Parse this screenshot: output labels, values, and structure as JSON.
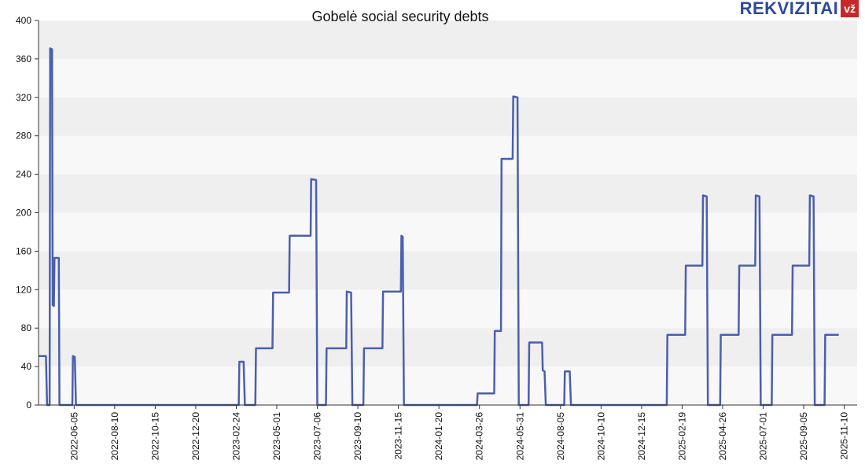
{
  "title": "Gobelė social security debts",
  "logo": {
    "text": "REKVIZITAI",
    "badge": "vž"
  },
  "colors": {
    "line": "#4a5fae",
    "band_dark": "#efefef",
    "band_light": "#f8f8f8",
    "axis": "#333333"
  },
  "chart_data": {
    "type": "line",
    "title": "Gobelė social security debts",
    "xlabel": "",
    "ylabel": "",
    "ylim": [
      0,
      400
    ],
    "y_ticks": [
      0,
      40,
      80,
      120,
      160,
      200,
      240,
      280,
      320,
      360,
      400
    ],
    "x_range": [
      "2022-04-08",
      "2025-12-01"
    ],
    "x_ticks": [
      "2022-06-05",
      "2022-08-10",
      "2022-10-15",
      "2022-12-20",
      "2023-02-24",
      "2023-05-01",
      "2023-07-06",
      "2023-09-10",
      "2023-11-15",
      "2024-01-20",
      "2024-03-26",
      "2024-05-31",
      "2024-08-05",
      "2024-10-10",
      "2024-12-15",
      "2025-02-19",
      "2025-04-26",
      "2025-07-01",
      "2025-09-05",
      "2025-11-10"
    ],
    "grid": "horizontal bands",
    "step": true,
    "series": [
      {
        "points": [
          [
            "2022-04-08",
            51
          ],
          [
            "2022-04-20",
            51
          ],
          [
            "2022-04-22",
            0
          ],
          [
            "2022-04-26",
            0
          ],
          [
            "2022-04-27",
            371
          ],
          [
            "2022-04-30",
            370
          ],
          [
            "2022-05-01",
            104
          ],
          [
            "2022-05-03",
            103
          ],
          [
            "2022-05-04",
            153
          ],
          [
            "2022-05-11",
            153
          ],
          [
            "2022-05-12",
            0
          ],
          [
            "2022-06-02",
            0
          ],
          [
            "2022-06-03",
            51
          ],
          [
            "2022-06-06",
            50
          ],
          [
            "2022-06-08",
            0
          ],
          [
            "2023-02-28",
            0
          ],
          [
            "2023-03-01",
            45
          ],
          [
            "2023-03-08",
            45
          ],
          [
            "2023-03-10",
            0
          ],
          [
            "2023-03-27",
            0
          ],
          [
            "2023-03-28",
            59
          ],
          [
            "2023-04-24",
            59
          ],
          [
            "2023-04-25",
            117
          ],
          [
            "2023-05-21",
            117
          ],
          [
            "2023-05-22",
            176
          ],
          [
            "2023-06-25",
            176
          ],
          [
            "2023-06-26",
            235
          ],
          [
            "2023-07-04",
            234
          ],
          [
            "2023-07-06",
            0
          ],
          [
            "2023-07-20",
            0
          ],
          [
            "2023-07-21",
            59
          ],
          [
            "2023-08-22",
            59
          ],
          [
            "2023-08-23",
            118
          ],
          [
            "2023-08-30",
            117
          ],
          [
            "2023-09-01",
            0
          ],
          [
            "2023-09-19",
            0
          ],
          [
            "2023-09-20",
            59
          ],
          [
            "2023-10-20",
            59
          ],
          [
            "2023-10-21",
            118
          ],
          [
            "2023-11-19",
            118
          ],
          [
            "2023-11-20",
            176
          ],
          [
            "2023-11-22",
            175
          ],
          [
            "2023-11-24",
            0
          ],
          [
            "2024-03-22",
            0
          ],
          [
            "2024-03-23",
            12
          ],
          [
            "2024-04-19",
            12
          ],
          [
            "2024-04-20",
            77
          ],
          [
            "2024-04-30",
            77
          ],
          [
            "2024-05-01",
            256
          ],
          [
            "2024-05-19",
            256
          ],
          [
            "2024-05-20",
            321
          ],
          [
            "2024-05-27",
            320
          ],
          [
            "2024-05-29",
            0
          ],
          [
            "2024-06-14",
            0
          ],
          [
            "2024-06-15",
            65
          ],
          [
            "2024-07-06",
            65
          ],
          [
            "2024-07-07",
            36
          ],
          [
            "2024-07-10",
            35
          ],
          [
            "2024-07-12",
            0
          ],
          [
            "2024-08-11",
            0
          ],
          [
            "2024-08-12",
            35
          ],
          [
            "2024-08-20",
            35
          ],
          [
            "2024-08-22",
            0
          ],
          [
            "2025-01-25",
            0
          ],
          [
            "2025-01-26",
            73
          ],
          [
            "2025-02-24",
            73
          ],
          [
            "2025-02-25",
            145
          ],
          [
            "2025-03-24",
            145
          ],
          [
            "2025-03-25",
            218
          ],
          [
            "2025-03-31",
            217
          ],
          [
            "2025-04-02",
            0
          ],
          [
            "2025-04-22",
            0
          ],
          [
            "2025-04-23",
            73
          ],
          [
            "2025-05-22",
            73
          ],
          [
            "2025-05-23",
            145
          ],
          [
            "2025-06-18",
            145
          ],
          [
            "2025-06-19",
            218
          ],
          [
            "2025-06-25",
            217
          ],
          [
            "2025-06-27",
            0
          ],
          [
            "2025-07-15",
            0
          ],
          [
            "2025-07-16",
            73
          ],
          [
            "2025-08-17",
            73
          ],
          [
            "2025-08-18",
            145
          ],
          [
            "2025-09-14",
            145
          ],
          [
            "2025-09-15",
            218
          ],
          [
            "2025-09-21",
            217
          ],
          [
            "2025-09-23",
            0
          ],
          [
            "2025-10-09",
            0
          ],
          [
            "2025-10-10",
            73
          ],
          [
            "2025-11-01",
            73
          ]
        ]
      }
    ]
  }
}
